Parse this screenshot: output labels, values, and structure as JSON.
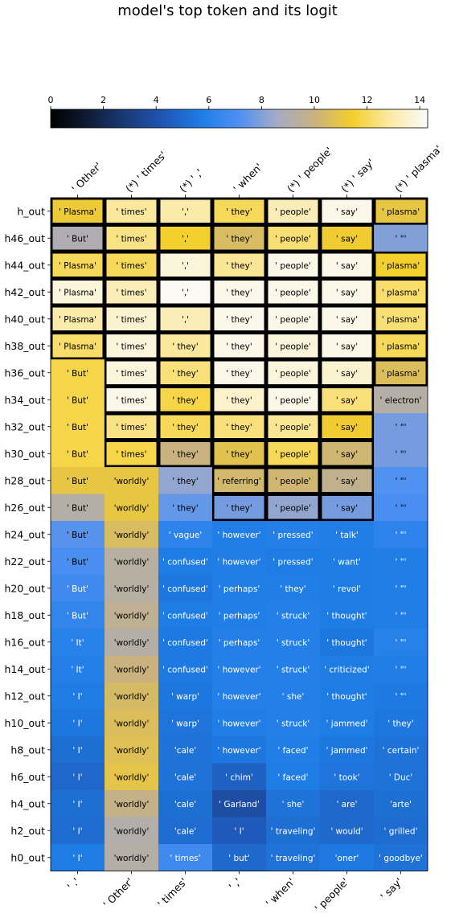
{
  "chart_data": {
    "type": "heatmap",
    "title": "model's top token and its logit",
    "top_labels": [
      "' Other'",
      "(*) ' times'",
      "(*) ' ,'",
      "' when'",
      "(*) ' people'",
      "(*) ' say'",
      "(*) ' plasma'"
    ],
    "bottom_labels": [
      "' .'",
      "' Other'",
      "' times'",
      "' ,'",
      "' when'",
      "' people'",
      "' say'"
    ],
    "rows": [
      "h_out",
      "h46_out",
      "h44_out",
      "h42_out",
      "h40_out",
      "h38_out",
      "h36_out",
      "h34_out",
      "h32_out",
      "h30_out",
      "h28_out",
      "h26_out",
      "h24_out",
      "h22_out",
      "h20_out",
      "h18_out",
      "h16_out",
      "h14_out",
      "h12_out",
      "h10_out",
      "h8_out",
      "h6_out",
      "h4_out",
      "h2_out",
      "h0_out"
    ],
    "tokens": [
      [
        "' Plasma'",
        "' times'",
        "','",
        "' they'",
        "' people'",
        "' say'",
        "' plasma'"
      ],
      [
        "' But'",
        "' times'",
        "','",
        "' they'",
        "' people'",
        "' say'",
        "' \"'"
      ],
      [
        "' Plasma'",
        "' times'",
        "','",
        "' they'",
        "' people'",
        "' say'",
        "' plasma'"
      ],
      [
        "' Plasma'",
        "' times'",
        "','",
        "' they'",
        "' people'",
        "' say'",
        "' plasma'"
      ],
      [
        "' Plasma'",
        "' times'",
        "','",
        "' they'",
        "' people'",
        "' say'",
        "' plasma'"
      ],
      [
        "' Plasma'",
        "' times'",
        "' they'",
        "' they'",
        "' people'",
        "' say'",
        "' plasma'"
      ],
      [
        "' But'",
        "' times'",
        "' they'",
        "' they'",
        "' people'",
        "' say'",
        "' plasma'"
      ],
      [
        "' But'",
        "' times'",
        "' they'",
        "' they'",
        "' people'",
        "' say'",
        "' electron'"
      ],
      [
        "' But'",
        "' times'",
        "' they'",
        "' they'",
        "' people'",
        "' say'",
        "' \"'"
      ],
      [
        "' But'",
        "' times'",
        "' they'",
        "' they'",
        "' people'",
        "' say'",
        "' \"'"
      ],
      [
        "' But'",
        "'worldly'",
        "' they'",
        "' referring'",
        "' people'",
        "' say'",
        "' \"'"
      ],
      [
        "' But'",
        "'worldly'",
        "' they'",
        "' they'",
        "' people'",
        "' say'",
        "' \"'"
      ],
      [
        "' But'",
        "'worldly'",
        "' vague'",
        "' however'",
        "' pressed'",
        "' talk'",
        "' \"'"
      ],
      [
        "' But'",
        "'worldly'",
        "' confused'",
        "' however'",
        "' pressed'",
        "' want'",
        "' \"'"
      ],
      [
        "' But'",
        "'worldly'",
        "' confused'",
        "' perhaps'",
        "' they'",
        "' revol'",
        "' \"'"
      ],
      [
        "' But'",
        "'worldly'",
        "' confused'",
        "' perhaps'",
        "' struck'",
        "' thought'",
        "' \"'"
      ],
      [
        "' It'",
        "'worldly'",
        "' confused'",
        "' perhaps'",
        "' struck'",
        "' thought'",
        "' \"'"
      ],
      [
        "' It'",
        "'worldly'",
        "' confused'",
        "' however'",
        "' struck'",
        "' criticized'",
        "' \"'"
      ],
      [
        "' I'",
        "'worldly'",
        "' warp'",
        "' however'",
        "' she'",
        "' thought'",
        "' \"'"
      ],
      [
        "' I'",
        "'worldly'",
        "' warp'",
        "' however'",
        "' struck'",
        "' jammed'",
        "' they'"
      ],
      [
        "' I'",
        "'worldly'",
        "'cale'",
        "' however'",
        "' faced'",
        "' jammed'",
        "' certain'"
      ],
      [
        "' I'",
        "'worldly'",
        "'cale'",
        "' chim'",
        "' faced'",
        "' took'",
        "' Duc'"
      ],
      [
        "' I'",
        "'worldly'",
        "'cale'",
        "' Garland'",
        "' she'",
        "' are'",
        "'arte'"
      ],
      [
        "' I'",
        "'worldly'",
        "'cale'",
        "' I'",
        "' traveling'",
        "' would'",
        "' grilled'"
      ],
      [
        "' I'",
        "'worldly'",
        "' times'",
        "' but'",
        "' traveling'",
        "'oner'",
        "' goodbye'"
      ]
    ],
    "logits": [
      [
        11.2,
        12.8,
        13.0,
        12.0,
        13.2,
        14.0,
        11.0
      ],
      [
        9.0,
        12.5,
        11.5,
        10.5,
        12.3,
        11.3,
        8.0
      ],
      [
        12.0,
        12.0,
        13.8,
        12.7,
        14.0,
        14.0,
        11.5
      ],
      [
        13.8,
        13.2,
        14.2,
        14.0,
        14.0,
        14.0,
        12.2
      ],
      [
        13.0,
        13.6,
        13.2,
        14.0,
        14.0,
        14.0,
        12.3
      ],
      [
        12.2,
        13.8,
        12.8,
        14.0,
        13.8,
        14.0,
        12.0
      ],
      [
        11.8,
        13.8,
        12.4,
        14.0,
        13.8,
        13.6,
        10.6
      ],
      [
        11.8,
        14.0,
        11.8,
        13.5,
        14.0,
        12.4,
        9.2
      ],
      [
        11.8,
        12.5,
        12.0,
        12.4,
        12.7,
        11.3,
        7.8
      ],
      [
        11.8,
        11.8,
        10.0,
        10.8,
        12.0,
        10.2,
        7.8
      ],
      [
        11.0,
        11.0,
        8.3,
        10.3,
        10.2,
        9.7,
        7.2
      ],
      [
        9.2,
        11.0,
        7.5,
        7.8,
        8.3,
        7.8,
        7.0
      ],
      [
        7.3,
        10.5,
        6.2,
        5.8,
        5.9,
        5.8,
        6.2
      ],
      [
        7.0,
        9.3,
        5.7,
        5.8,
        5.7,
        5.7,
        5.8
      ],
      [
        6.7,
        9.3,
        5.5,
        5.8,
        5.8,
        5.7,
        5.8
      ],
      [
        6.3,
        9.6,
        5.7,
        5.8,
        5.9,
        5.7,
        5.8
      ],
      [
        6.0,
        9.2,
        5.6,
        5.9,
        5.9,
        5.5,
        6.0
      ],
      [
        5.9,
        10.0,
        5.6,
        5.9,
        5.9,
        5.7,
        5.8
      ],
      [
        5.7,
        10.4,
        5.5,
        5.9,
        5.9,
        5.7,
        5.6
      ],
      [
        5.5,
        10.6,
        5.4,
        5.8,
        5.9,
        5.7,
        5.5
      ],
      [
        5.2,
        10.7,
        5.3,
        5.5,
        5.8,
        5.5,
        5.3
      ],
      [
        4.9,
        10.9,
        5.3,
        4.7,
        5.7,
        5.4,
        5.3
      ],
      [
        5.2,
        9.8,
        5.2,
        3.9,
        5.3,
        4.9,
        5.2
      ],
      [
        5.1,
        9.1,
        5.1,
        4.4,
        5.2,
        5.0,
        5.1
      ],
      [
        5.7,
        9.2,
        6.7,
        5.0,
        5.3,
        5.6,
        5.3
      ]
    ],
    "outlined": [
      [
        1,
        1,
        1,
        1,
        1,
        1,
        1
      ],
      [
        1,
        1,
        1,
        1,
        1,
        1,
        0
      ],
      [
        1,
        1,
        1,
        1,
        1,
        1,
        1
      ],
      [
        1,
        1,
        1,
        1,
        1,
        1,
        1
      ],
      [
        1,
        1,
        1,
        1,
        1,
        1,
        1
      ],
      [
        1,
        1,
        1,
        1,
        1,
        1,
        1
      ],
      [
        0,
        1,
        1,
        1,
        1,
        1,
        1
      ],
      [
        0,
        1,
        1,
        1,
        1,
        1,
        0
      ],
      [
        0,
        1,
        1,
        1,
        1,
        1,
        0
      ],
      [
        0,
        1,
        1,
        1,
        1,
        1,
        0
      ],
      [
        0,
        0,
        0,
        1,
        1,
        1,
        0
      ],
      [
        0,
        0,
        0,
        1,
        1,
        1,
        0
      ],
      [
        0,
        0,
        0,
        0,
        0,
        0,
        0
      ],
      [
        0,
        0,
        0,
        0,
        0,
        0,
        0
      ],
      [
        0,
        0,
        0,
        0,
        0,
        0,
        0
      ],
      [
        0,
        0,
        0,
        0,
        0,
        0,
        0
      ],
      [
        0,
        0,
        0,
        0,
        0,
        0,
        0
      ],
      [
        0,
        0,
        0,
        0,
        0,
        0,
        0
      ],
      [
        0,
        0,
        0,
        0,
        0,
        0,
        0
      ],
      [
        0,
        0,
        0,
        0,
        0,
        0,
        0
      ],
      [
        0,
        0,
        0,
        0,
        0,
        0,
        0
      ],
      [
        0,
        0,
        0,
        0,
        0,
        0,
        0
      ],
      [
        0,
        0,
        0,
        0,
        0,
        0,
        0
      ],
      [
        0,
        0,
        0,
        0,
        0,
        0,
        0
      ],
      [
        0,
        0,
        0,
        0,
        0,
        0,
        0
      ]
    ],
    "colorbar": {
      "range": [
        0,
        14.3
      ],
      "ticks": [
        "0",
        "2",
        "4",
        "6",
        "8",
        "10",
        "12",
        "14"
      ],
      "tick_values": [
        0,
        2,
        4,
        6,
        8,
        10,
        12,
        14
      ],
      "stops": [
        "#000000",
        "#0f1c36",
        "#1a3a78",
        "#1f56b5",
        "#1e7de6",
        "#4e90f2",
        "#a4abc6",
        "#c9b27d",
        "#f4cf2a",
        "#fbe9a3",
        "#fbfbfb"
      ]
    }
  }
}
